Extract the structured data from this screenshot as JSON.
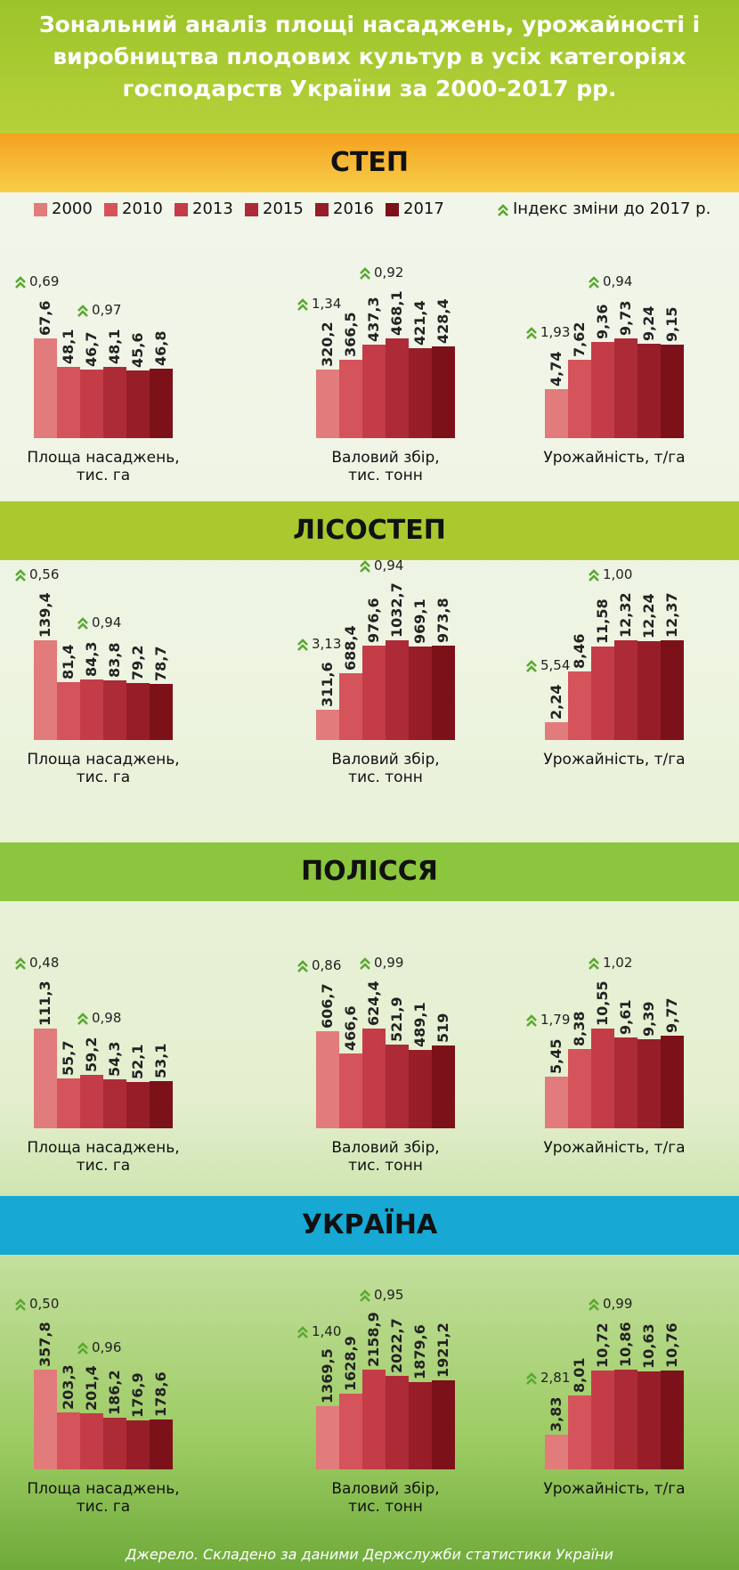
{
  "title": "Зональний аналіз площі насаджень, урожайності і виробництва плодових культур в усіх категоріях господарств України за 2000-2017 рр.",
  "legend": {
    "years": [
      "2000",
      "2010",
      "2013",
      "2015",
      "2016",
      "2017"
    ],
    "colors": [
      "#e27b7b",
      "#d5535b",
      "#c43c47",
      "#ad2b37",
      "#971d29",
      "#7c1119"
    ],
    "index_label": "Індекс зміни до 2017 р.",
    "index_color": "#5aa832"
  },
  "zones": [
    {
      "name": "СТЕП",
      "color": "#f4a11f",
      "charts": [
        {
          "type": "bar",
          "title": "Площа насаджень, тис. га",
          "values": [
            67.6,
            48.1,
            46.7,
            48.1,
            45.6,
            46.8
          ],
          "value_labels": [
            "67,6",
            "48,1",
            "46,7",
            "48,1",
            "45,6",
            "46,8"
          ],
          "indices": [
            {
              "value": 0.69,
              "label": "0,69"
            },
            {
              "value": 0.97,
              "label": "0,97"
            }
          ]
        },
        {
          "type": "bar",
          "title": "Валовий збір, тис. тонн",
          "values": [
            320.2,
            366.5,
            437.3,
            468.1,
            421.4,
            428.4
          ],
          "value_labels": [
            "320,2",
            "366,5",
            "437,3",
            "468,1",
            "421,4",
            "428,4"
          ],
          "indices": [
            {
              "value": 1.34,
              "label": "1,34"
            },
            {
              "value": 0.92,
              "label": "0,92"
            }
          ]
        },
        {
          "type": "bar",
          "title": "Урожайність, т/га",
          "values": [
            4.74,
            7.62,
            9.36,
            9.73,
            9.24,
            9.15
          ],
          "value_labels": [
            "4,74",
            "7,62",
            "9,36",
            "9,73",
            "9,24",
            "9,15"
          ],
          "indices": [
            {
              "value": 1.93,
              "label": "1,93"
            },
            {
              "value": 0.94,
              "label": "0,94"
            }
          ]
        }
      ]
    },
    {
      "name": "ЛІСОСТЕП",
      "color": "#a9c92f",
      "charts": [
        {
          "type": "bar",
          "title": "Площа насаджень, тис. га",
          "values": [
            139.4,
            81.4,
            84.3,
            83.8,
            79.2,
            78.7
          ],
          "value_labels": [
            "139,4",
            "81,4",
            "84,3",
            "83,8",
            "79,2",
            "78,7"
          ],
          "indices": [
            {
              "value": 0.56,
              "label": "0,56"
            },
            {
              "value": 0.94,
              "label": "0,94"
            }
          ]
        },
        {
          "type": "bar",
          "title": "Валовий збір, тис. тонн",
          "values": [
            311.6,
            688.4,
            976.6,
            1032.7,
            969.1,
            973.8
          ],
          "value_labels": [
            "311,6",
            "688,4",
            "976,6",
            "1032,7",
            "969,1",
            "973,8"
          ],
          "indices": [
            {
              "value": 3.13,
              "label": "3,13"
            },
            {
              "value": 0.94,
              "label": "0,94"
            }
          ]
        },
        {
          "type": "bar",
          "title": "Урожайність, т/га",
          "values": [
            2.24,
            8.46,
            11.58,
            12.32,
            12.24,
            12.37
          ],
          "value_labels": [
            "2,24",
            "8,46",
            "11,58",
            "12,32",
            "12,24",
            "12,37"
          ],
          "indices": [
            {
              "value": 5.54,
              "label": "5,54"
            },
            {
              "value": 1.0,
              "label": "1,00"
            }
          ]
        }
      ]
    },
    {
      "name": "ПОЛІССЯ",
      "color": "#8cc63e",
      "charts": [
        {
          "type": "bar",
          "title": "Площа насаджень, тис. га",
          "values": [
            111.3,
            55.7,
            59.2,
            54.3,
            52.1,
            53.1
          ],
          "value_labels": [
            "111,3",
            "55,7",
            "59,2",
            "54,3",
            "52,1",
            "53,1"
          ],
          "indices": [
            {
              "value": 0.48,
              "label": "0,48"
            },
            {
              "value": 0.98,
              "label": "0,98"
            }
          ]
        },
        {
          "type": "bar",
          "title": "Валовий збір, тис. тонн",
          "values": [
            606.7,
            466.6,
            624.4,
            521.9,
            489.1,
            519
          ],
          "value_labels": [
            "606,7",
            "466,6",
            "624,4",
            "521,9",
            "489,1",
            "519"
          ],
          "indices": [
            {
              "value": 0.86,
              "label": "0,86"
            },
            {
              "value": 0.99,
              "label": "0,99"
            }
          ]
        },
        {
          "type": "bar",
          "title": "Урожайність, т/га",
          "values": [
            5.45,
            8.38,
            10.55,
            9.61,
            9.39,
            9.77
          ],
          "value_labels": [
            "5,45",
            "8,38",
            "10,55",
            "9,61",
            "9,39",
            "9,77"
          ],
          "indices": [
            {
              "value": 1.79,
              "label": "1,79"
            },
            {
              "value": 1.02,
              "label": "1,02"
            }
          ]
        }
      ]
    },
    {
      "name": "УКРАЇНА",
      "color": "#17a8d3",
      "charts": [
        {
          "type": "bar",
          "title": "Площа насаджень, тис. га",
          "values": [
            357.8,
            203.3,
            201.4,
            186.2,
            176.9,
            178.6
          ],
          "value_labels": [
            "357,8",
            "203,3",
            "201,4",
            "186,2",
            "176,9",
            "178,6"
          ],
          "indices": [
            {
              "value": 0.5,
              "label": "0,50"
            },
            {
              "value": 0.96,
              "label": "0,96"
            }
          ]
        },
        {
          "type": "bar",
          "title": "Валовий збір, тис. тонн",
          "values": [
            1369.5,
            1628.9,
            2158.9,
            2022.7,
            1879.6,
            1921.2
          ],
          "value_labels": [
            "1369,5",
            "1628,9",
            "2158,9",
            "2022,7",
            "1879,6",
            "1921,2"
          ],
          "indices": [
            {
              "value": 1.4,
              "label": "1,40"
            },
            {
              "value": 0.95,
              "label": "0,95"
            }
          ]
        },
        {
          "type": "bar",
          "title": "Урожайність, т/га",
          "values": [
            3.83,
            8.01,
            10.72,
            10.86,
            10.63,
            10.76
          ],
          "value_labels": [
            "3,83",
            "8,01",
            "10,72",
            "10,86",
            "10,63",
            "10,76"
          ],
          "indices": [
            {
              "value": 2.81,
              "label": "2,81"
            },
            {
              "value": 0.99,
              "label": "0,99"
            }
          ]
        }
      ]
    }
  ],
  "source": "Джерело. Складено за даними Держслужби статистики України"
}
